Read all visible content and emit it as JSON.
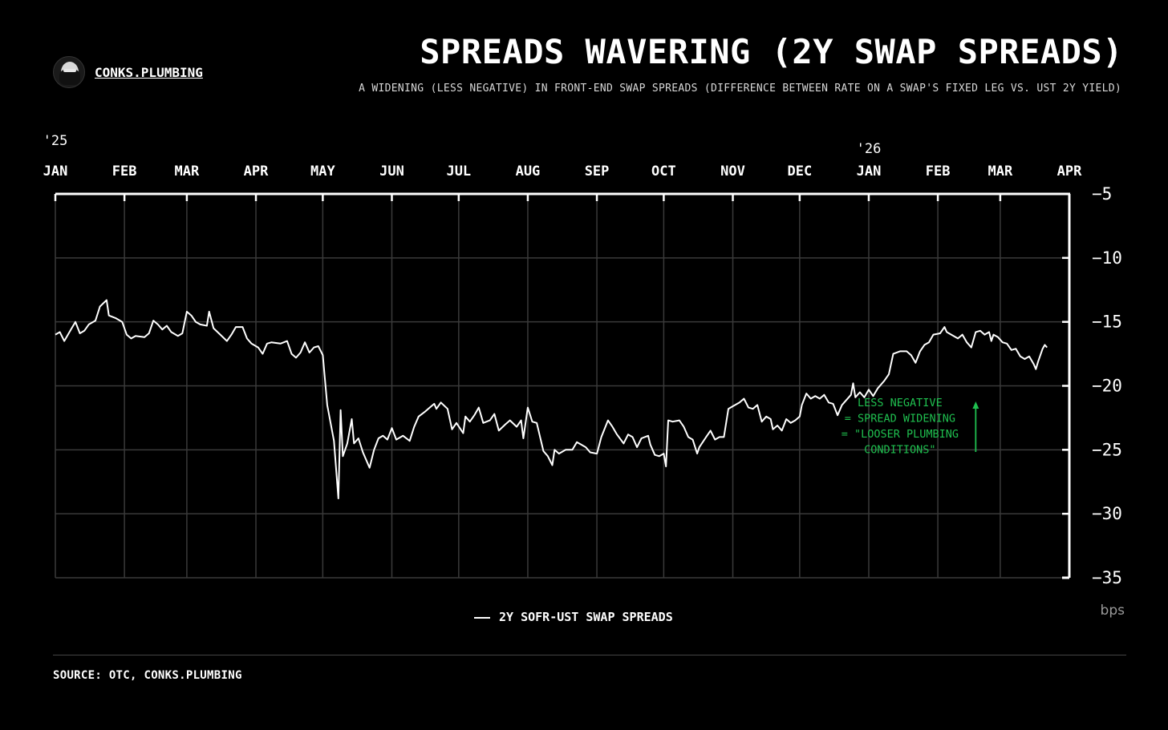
{
  "brand": {
    "name": "CONKS.PLUMBING",
    "avatar_icon": "masked-figure-avatar"
  },
  "header": {
    "title": "SPREADS WAVERING (2Y SWAP SPREADS)",
    "subtitle": "A WIDENING (LESS NEGATIVE) IN FRONT-END SWAP SPREADS (DIFFERENCE BETWEEN RATE ON A SWAP'S FIXED LEG VS. UST 2Y YIELD)"
  },
  "footer": {
    "source": "SOURCE: OTC, CONKS.PLUMBING"
  },
  "colors": {
    "background": "#000000",
    "line": "#ffffff",
    "grid": "#3a3a3a",
    "annotation": "#1fbf4f"
  },
  "chart_data": {
    "type": "line",
    "title": "SPREADS WAVERING (2Y SWAP SPREADS)",
    "unit_label": "bps",
    "ylim": [
      -35,
      -5
    ],
    "yticks": [
      -5,
      -10,
      -15,
      -20,
      -25,
      -30,
      -35
    ],
    "ytick_labels": [
      "−5",
      "−10",
      "−15",
      "−20",
      "−25",
      "−30",
      "−35"
    ],
    "y_axis_position": "right",
    "x_axis_position": "top",
    "xlim": [
      "2025-01-01",
      "2026-04-01"
    ],
    "x_ticks": [
      {
        "date": "2025-01-01",
        "label": "JAN",
        "year": "'25"
      },
      {
        "date": "2025-02-01",
        "label": "FEB",
        "year": ""
      },
      {
        "date": "2025-03-01",
        "label": "MAR",
        "year": ""
      },
      {
        "date": "2025-04-01",
        "label": "APR",
        "year": ""
      },
      {
        "date": "2025-05-01",
        "label": "MAY",
        "year": ""
      },
      {
        "date": "2025-06-01",
        "label": "JUN",
        "year": ""
      },
      {
        "date": "2025-07-01",
        "label": "JUL",
        "year": ""
      },
      {
        "date": "2025-08-01",
        "label": "AUG",
        "year": ""
      },
      {
        "date": "2025-09-01",
        "label": "SEP",
        "year": ""
      },
      {
        "date": "2025-10-01",
        "label": "OCT",
        "year": ""
      },
      {
        "date": "2025-11-01",
        "label": "NOV",
        "year": ""
      },
      {
        "date": "2025-12-01",
        "label": "DEC",
        "year": ""
      },
      {
        "date": "2026-01-01",
        "label": "JAN",
        "year": "'26"
      },
      {
        "date": "2026-02-01",
        "label": "FEB",
        "year": ""
      },
      {
        "date": "2026-03-01",
        "label": "MAR",
        "year": ""
      },
      {
        "date": "2026-04-01",
        "label": "APR",
        "year": ""
      }
    ],
    "grid": true,
    "legend": {
      "position": "bottom-center",
      "entries": [
        "2Y SOFR-UST SWAP SPREADS"
      ]
    },
    "annotation": {
      "lines": [
        "LESS NEGATIVE",
        "= SPREAD WIDENING",
        "= \"LOOSER PLUMBING",
        "CONDITIONS\""
      ],
      "at_date": "2026-01-15",
      "at_value": -21.8,
      "arrow": "up"
    },
    "series": [
      {
        "name": "2Y SOFR-UST SWAP SPREADS",
        "points": [
          [
            "2025-01-01",
            -16.0
          ],
          [
            "2025-01-03",
            -15.8
          ],
          [
            "2025-01-05",
            -16.5
          ],
          [
            "2025-01-08",
            -15.6
          ],
          [
            "2025-01-10",
            -15.0
          ],
          [
            "2025-01-12",
            -15.9
          ],
          [
            "2025-01-14",
            -15.7
          ],
          [
            "2025-01-16",
            -15.2
          ],
          [
            "2025-01-19",
            -14.9
          ],
          [
            "2025-01-21",
            -13.8
          ],
          [
            "2025-01-24",
            -13.3
          ],
          [
            "2025-01-25",
            -14.5
          ],
          [
            "2025-01-28",
            -14.7
          ],
          [
            "2025-01-31",
            -15.0
          ],
          [
            "2025-02-02",
            -16.0
          ],
          [
            "2025-02-04",
            -16.3
          ],
          [
            "2025-02-06",
            -16.1
          ],
          [
            "2025-02-10",
            -16.2
          ],
          [
            "2025-02-12",
            -15.9
          ],
          [
            "2025-02-14",
            -14.9
          ],
          [
            "2025-02-16",
            -15.2
          ],
          [
            "2025-02-18",
            -15.6
          ],
          [
            "2025-02-20",
            -15.3
          ],
          [
            "2025-02-22",
            -15.8
          ],
          [
            "2025-02-25",
            -16.1
          ],
          [
            "2025-02-27",
            -15.9
          ],
          [
            "2025-03-01",
            -14.2
          ],
          [
            "2025-03-03",
            -14.5
          ],
          [
            "2025-03-05",
            -15.0
          ],
          [
            "2025-03-07",
            -15.2
          ],
          [
            "2025-03-10",
            -15.3
          ],
          [
            "2025-03-11",
            -14.2
          ],
          [
            "2025-03-13",
            -15.5
          ],
          [
            "2025-03-16",
            -16.0
          ],
          [
            "2025-03-19",
            -16.5
          ],
          [
            "2025-03-21",
            -16.0
          ],
          [
            "2025-03-23",
            -15.4
          ],
          [
            "2025-03-26",
            -15.4
          ],
          [
            "2025-03-28",
            -16.3
          ],
          [
            "2025-03-30",
            -16.7
          ],
          [
            "2025-04-02",
            -17.0
          ],
          [
            "2025-04-04",
            -17.5
          ],
          [
            "2025-04-06",
            -16.7
          ],
          [
            "2025-04-08",
            -16.6
          ],
          [
            "2025-04-12",
            -16.7
          ],
          [
            "2025-04-15",
            -16.5
          ],
          [
            "2025-04-17",
            -17.5
          ],
          [
            "2025-04-19",
            -17.8
          ],
          [
            "2025-04-21",
            -17.4
          ],
          [
            "2025-04-23",
            -16.6
          ],
          [
            "2025-04-25",
            -17.4
          ],
          [
            "2025-04-27",
            -17.0
          ],
          [
            "2025-04-29",
            -16.9
          ],
          [
            "2025-05-01",
            -17.6
          ],
          [
            "2025-05-03",
            -21.5
          ],
          [
            "2025-05-06",
            -24.3
          ],
          [
            "2025-05-08",
            -28.8
          ],
          [
            "2025-05-09",
            -21.9
          ],
          [
            "2025-05-10",
            -25.5
          ],
          [
            "2025-05-12",
            -24.5
          ],
          [
            "2025-05-14",
            -22.6
          ],
          [
            "2025-05-15",
            -24.5
          ],
          [
            "2025-05-17",
            -24.1
          ],
          [
            "2025-05-19",
            -25.2
          ],
          [
            "2025-05-22",
            -26.4
          ],
          [
            "2025-05-24",
            -25.0
          ],
          [
            "2025-05-26",
            -24.1
          ],
          [
            "2025-05-28",
            -23.9
          ],
          [
            "2025-05-30",
            -24.2
          ],
          [
            "2025-06-01",
            -23.3
          ],
          [
            "2025-06-03",
            -24.2
          ],
          [
            "2025-06-06",
            -23.9
          ],
          [
            "2025-06-09",
            -24.3
          ],
          [
            "2025-06-11",
            -23.2
          ],
          [
            "2025-06-13",
            -22.4
          ],
          [
            "2025-06-16",
            -22.0
          ],
          [
            "2025-06-18",
            -21.7
          ],
          [
            "2025-06-20",
            -21.4
          ],
          [
            "2025-06-21",
            -21.8
          ],
          [
            "2025-06-23",
            -21.3
          ],
          [
            "2025-06-26",
            -21.8
          ],
          [
            "2025-06-28",
            -23.4
          ],
          [
            "2025-06-30",
            -22.9
          ],
          [
            "2025-07-03",
            -23.7
          ],
          [
            "2025-07-04",
            -22.4
          ],
          [
            "2025-07-06",
            -22.8
          ],
          [
            "2025-07-08",
            -22.3
          ],
          [
            "2025-07-10",
            -21.7
          ],
          [
            "2025-07-12",
            -22.9
          ],
          [
            "2025-07-15",
            -22.7
          ],
          [
            "2025-07-17",
            -22.2
          ],
          [
            "2025-07-19",
            -23.5
          ],
          [
            "2025-07-22",
            -23.0
          ],
          [
            "2025-07-24",
            -22.7
          ],
          [
            "2025-07-27",
            -23.2
          ],
          [
            "2025-07-29",
            -22.7
          ],
          [
            "2025-07-30",
            -24.1
          ],
          [
            "2025-08-01",
            -21.7
          ],
          [
            "2025-08-03",
            -22.8
          ],
          [
            "2025-08-05",
            -22.9
          ],
          [
            "2025-08-08",
            -25.1
          ],
          [
            "2025-08-10",
            -25.5
          ],
          [
            "2025-08-12",
            -26.2
          ],
          [
            "2025-08-13",
            -25.0
          ],
          [
            "2025-08-15",
            -25.3
          ],
          [
            "2025-08-18",
            -25.0
          ],
          [
            "2025-08-21",
            -25.0
          ],
          [
            "2025-08-23",
            -24.4
          ],
          [
            "2025-08-25",
            -24.6
          ],
          [
            "2025-08-27",
            -24.8
          ],
          [
            "2025-08-29",
            -25.2
          ],
          [
            "2025-09-01",
            -25.3
          ],
          [
            "2025-09-03",
            -24.0
          ],
          [
            "2025-09-06",
            -22.7
          ],
          [
            "2025-09-08",
            -23.2
          ],
          [
            "2025-09-10",
            -23.8
          ],
          [
            "2025-09-13",
            -24.5
          ],
          [
            "2025-09-15",
            -23.8
          ],
          [
            "2025-09-17",
            -24.0
          ],
          [
            "2025-09-19",
            -24.8
          ],
          [
            "2025-09-21",
            -24.1
          ],
          [
            "2025-09-24",
            -23.9
          ],
          [
            "2025-09-25",
            -24.6
          ],
          [
            "2025-09-27",
            -25.4
          ],
          [
            "2025-09-29",
            -25.5
          ],
          [
            "2025-10-01",
            -25.3
          ],
          [
            "2025-10-02",
            -26.3
          ],
          [
            "2025-10-03",
            -22.7
          ],
          [
            "2025-10-05",
            -22.8
          ],
          [
            "2025-10-08",
            -22.7
          ],
          [
            "2025-10-10",
            -23.2
          ],
          [
            "2025-10-12",
            -24.0
          ],
          [
            "2025-10-14",
            -24.2
          ],
          [
            "2025-10-16",
            -25.3
          ],
          [
            "2025-10-17",
            -24.8
          ],
          [
            "2025-10-20",
            -24.0
          ],
          [
            "2025-10-22",
            -23.5
          ],
          [
            "2025-10-24",
            -24.2
          ],
          [
            "2025-10-26",
            -24.0
          ],
          [
            "2025-10-28",
            -24.0
          ],
          [
            "2025-10-30",
            -21.8
          ],
          [
            "2025-11-01",
            -21.6
          ],
          [
            "2025-11-04",
            -21.3
          ],
          [
            "2025-11-06",
            -21.0
          ],
          [
            "2025-11-08",
            -21.7
          ],
          [
            "2025-11-10",
            -21.8
          ],
          [
            "2025-11-12",
            -21.5
          ],
          [
            "2025-11-14",
            -22.8
          ],
          [
            "2025-11-16",
            -22.4
          ],
          [
            "2025-11-18",
            -22.6
          ],
          [
            "2025-11-19",
            -23.4
          ],
          [
            "2025-11-21",
            -23.1
          ],
          [
            "2025-11-23",
            -23.5
          ],
          [
            "2025-11-25",
            -22.6
          ],
          [
            "2025-11-27",
            -22.9
          ],
          [
            "2025-11-29",
            -22.7
          ],
          [
            "2025-12-01",
            -22.4
          ],
          [
            "2025-12-02",
            -21.5
          ],
          [
            "2025-12-04",
            -20.6
          ],
          [
            "2025-12-06",
            -21.0
          ],
          [
            "2025-12-08",
            -20.8
          ],
          [
            "2025-12-10",
            -21.0
          ],
          [
            "2025-12-12",
            -20.7
          ],
          [
            "2025-12-14",
            -21.3
          ],
          [
            "2025-12-16",
            -21.4
          ],
          [
            "2025-12-18",
            -22.3
          ],
          [
            "2025-12-20",
            -21.5
          ],
          [
            "2025-12-22",
            -21.1
          ],
          [
            "2025-12-24",
            -20.7
          ],
          [
            "2025-12-25",
            -19.8
          ],
          [
            "2025-12-26",
            -20.9
          ],
          [
            "2025-12-28",
            -20.5
          ],
          [
            "2025-12-30",
            -20.9
          ],
          [
            "2026-01-01",
            -20.3
          ],
          [
            "2026-01-03",
            -20.8
          ],
          [
            "2026-01-05",
            -20.2
          ],
          [
            "2026-01-08",
            -19.6
          ],
          [
            "2026-01-10",
            -19.1
          ],
          [
            "2026-01-12",
            -17.5
          ],
          [
            "2026-01-15",
            -17.3
          ],
          [
            "2026-01-18",
            -17.3
          ],
          [
            "2026-01-20",
            -17.6
          ],
          [
            "2026-01-22",
            -18.2
          ],
          [
            "2026-01-24",
            -17.3
          ],
          [
            "2026-01-26",
            -16.8
          ],
          [
            "2026-01-28",
            -16.6
          ],
          [
            "2026-01-30",
            -16.0
          ],
          [
            "2026-02-02",
            -15.9
          ],
          [
            "2026-02-04",
            -15.4
          ],
          [
            "2026-02-05",
            -15.8
          ],
          [
            "2026-02-07",
            -16.0
          ],
          [
            "2026-02-10",
            -16.3
          ],
          [
            "2026-02-12",
            -16.0
          ],
          [
            "2026-02-14",
            -16.6
          ],
          [
            "2026-02-16",
            -17.0
          ],
          [
            "2026-02-18",
            -15.8
          ],
          [
            "2026-02-20",
            -15.7
          ],
          [
            "2026-02-22",
            -16.0
          ],
          [
            "2026-02-24",
            -15.8
          ],
          [
            "2026-02-25",
            -16.5
          ],
          [
            "2026-02-26",
            -16.0
          ],
          [
            "2026-02-28",
            -16.2
          ],
          [
            "2026-03-02",
            -16.6
          ],
          [
            "2026-03-04",
            -16.7
          ],
          [
            "2026-03-06",
            -17.2
          ],
          [
            "2026-03-08",
            -17.1
          ],
          [
            "2026-03-10",
            -17.7
          ],
          [
            "2026-03-12",
            -17.9
          ],
          [
            "2026-03-14",
            -17.7
          ],
          [
            "2026-03-16",
            -18.3
          ],
          [
            "2026-03-17",
            -18.7
          ],
          [
            "2026-03-18",
            -18.1
          ],
          [
            "2026-03-20",
            -17.1
          ],
          [
            "2026-03-21",
            -16.8
          ],
          [
            "2026-03-22",
            -17.0
          ]
        ]
      }
    ]
  }
}
